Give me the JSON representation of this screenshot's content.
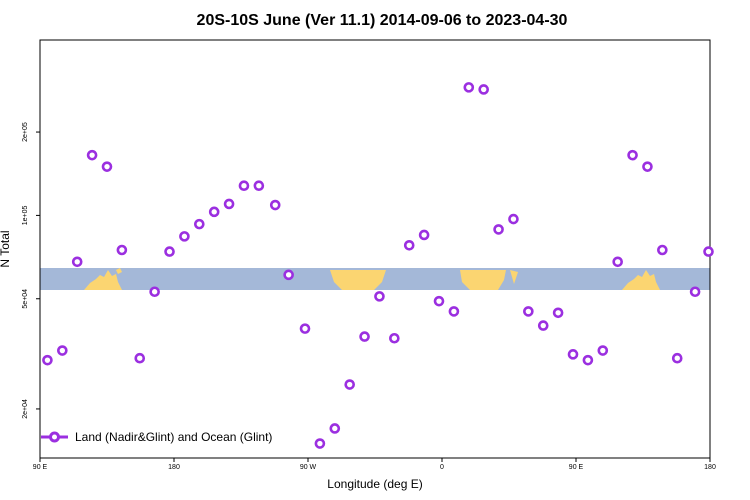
{
  "chart_data": {
    "type": "scatter",
    "title": "20S-10S June (Ver 11.1)   2014-09-06 to 2023-04-30",
    "xlabel": "Longitude (deg E)",
    "ylabel": "N Total",
    "xlim": [
      90,
      540
    ],
    "y_scale": "log",
    "ylim": [
      13300,
      430000
    ],
    "x_ticks": [
      {
        "value": 90,
        "label": "90 E"
      },
      {
        "value": 180,
        "label": "180"
      },
      {
        "value": 270,
        "label": "90 W"
      },
      {
        "value": 360,
        "label": "0"
      },
      {
        "value": 450,
        "label": "90 E"
      },
      {
        "value": 540,
        "label": "180"
      }
    ],
    "y_ticks": [
      {
        "value": 20000,
        "label": "2e+04"
      },
      {
        "value": 50000,
        "label": "5e+04"
      },
      {
        "value": 100000,
        "label": "1e+05"
      },
      {
        "value": 200000,
        "label": "2e+05"
      }
    ],
    "grid": false,
    "legend_position": "bottom-left",
    "series": [
      {
        "name": "Land (Nadir&Glint) and Ocean (Glint)",
        "color": "#9b2fe0",
        "marker": "open-circle",
        "x": [
          95,
          105,
          115,
          125,
          135,
          145,
          157,
          167,
          177,
          187,
          197,
          207,
          217,
          227,
          237,
          248,
          257,
          268,
          278,
          288,
          298,
          308,
          318,
          328,
          338,
          348,
          358,
          368,
          378,
          388,
          398,
          408,
          418,
          428,
          438,
          448,
          458,
          468,
          478,
          488,
          498,
          508,
          518,
          530,
          539
        ],
        "y": [
          30000,
          32500,
          68000,
          165000,
          150000,
          75000,
          30500,
          53000,
          74000,
          84000,
          93000,
          103000,
          110000,
          128000,
          128000,
          109000,
          61000,
          39000,
          15000,
          17000,
          24500,
          36500,
          51000,
          36000,
          78000,
          85000,
          49000,
          45000,
          290000,
          285000,
          89000,
          97000,
          45000,
          40000,
          44500,
          31500,
          30000,
          32500,
          68000,
          165000,
          150000,
          75000,
          30500,
          53000,
          74000
        ]
      }
    ]
  }
}
